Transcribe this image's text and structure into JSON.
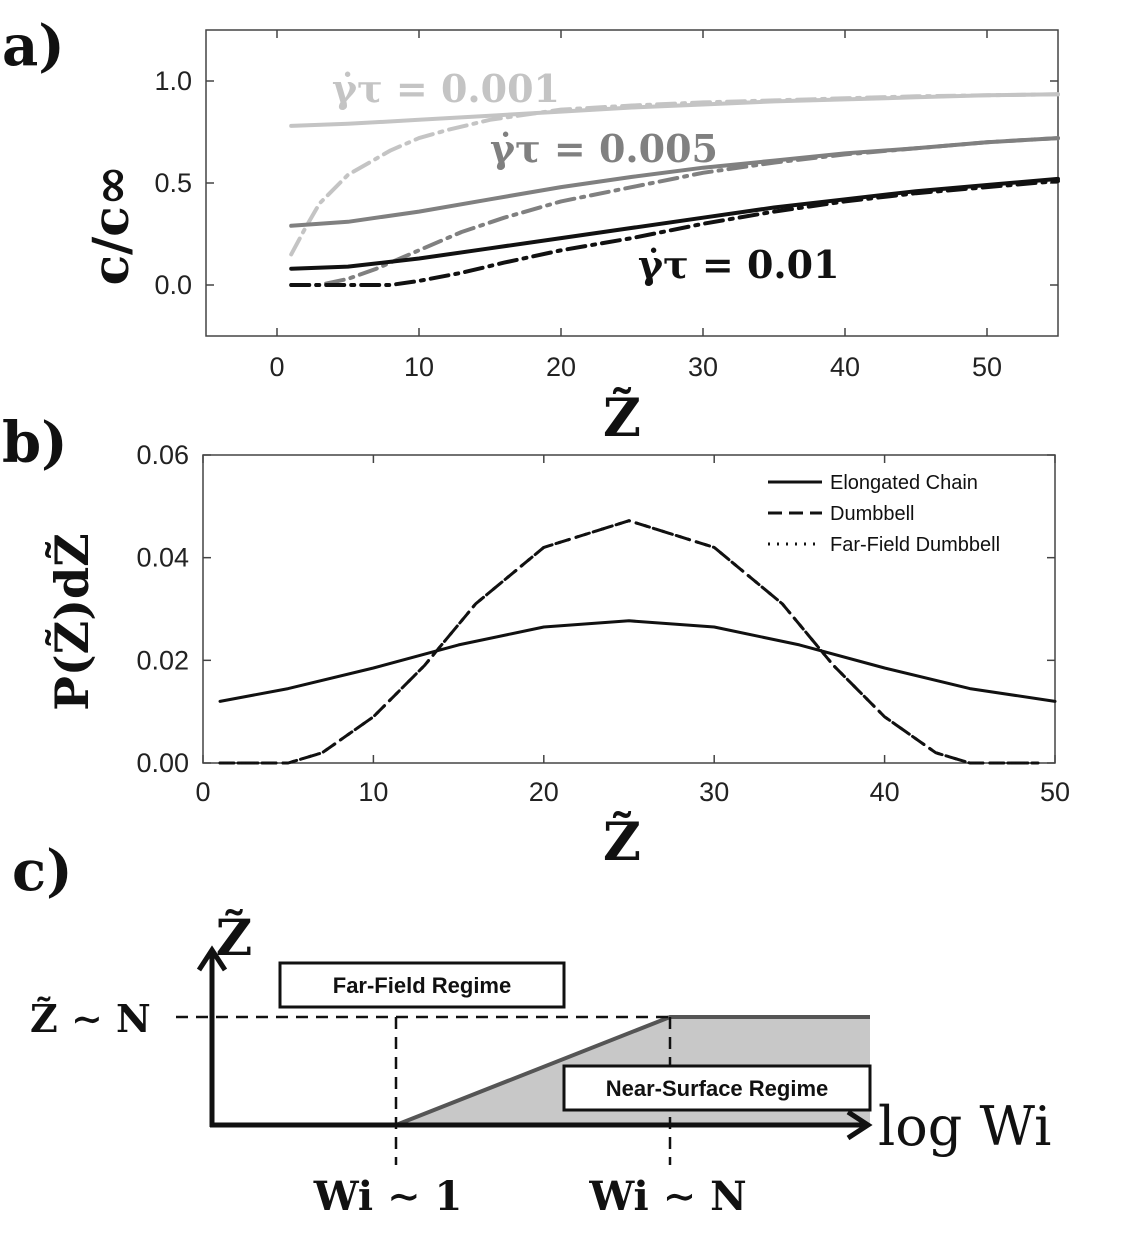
{
  "chart_data": [
    {
      "panel_label": "a)",
      "type": "line",
      "xlabel": "Z̃",
      "ylabel": "c/c∞",
      "xlim": [
        -5,
        55
      ],
      "ylim": [
        -0.25,
        1.25
      ],
      "xticks": [
        "0",
        "10",
        "20",
        "30",
        "40",
        "50"
      ],
      "yticks": [
        "0.0",
        "0.5",
        "1.0"
      ],
      "annotations": [
        "γ̇τ = 0.001",
        "γ̇τ = 0.005",
        "γ̇τ = 0.01"
      ],
      "series": [
        {
          "name": "γ̇τ = 0.001 (solid)",
          "color": "#c4c4c4",
          "style": "solid",
          "x": [
            1,
            5,
            10,
            15,
            20,
            25,
            30,
            35,
            40,
            45,
            50,
            55
          ],
          "y": [
            0.78,
            0.79,
            0.81,
            0.83,
            0.85,
            0.87,
            0.885,
            0.9,
            0.91,
            0.92,
            0.93,
            0.935
          ]
        },
        {
          "name": "γ̇τ = 0.001 (dashed)",
          "color": "#c4c4c4",
          "style": "dashdot",
          "x": [
            1,
            2,
            3,
            5,
            8,
            10,
            12,
            15,
            20,
            25,
            30,
            35,
            40,
            45,
            50,
            55
          ],
          "y": [
            0.15,
            0.28,
            0.4,
            0.54,
            0.66,
            0.72,
            0.76,
            0.81,
            0.86,
            0.88,
            0.895,
            0.905,
            0.915,
            0.925,
            0.93,
            0.935
          ]
        },
        {
          "name": "γ̇τ = 0.005 (solid)",
          "color": "#808080",
          "style": "solid",
          "x": [
            1,
            5,
            10,
            15,
            20,
            25,
            30,
            35,
            40,
            45,
            50,
            55
          ],
          "y": [
            0.29,
            0.31,
            0.36,
            0.42,
            0.48,
            0.53,
            0.575,
            0.61,
            0.645,
            0.67,
            0.7,
            0.72
          ]
        },
        {
          "name": "γ̇τ = 0.005 (dashed)",
          "color": "#808080",
          "style": "dashdot",
          "x": [
            1,
            3,
            5,
            7,
            10,
            13,
            16,
            20,
            25,
            30,
            35,
            40,
            45,
            50,
            55
          ],
          "y": [
            0.0,
            0.0,
            0.03,
            0.08,
            0.17,
            0.26,
            0.33,
            0.41,
            0.48,
            0.55,
            0.6,
            0.64,
            0.67,
            0.7,
            0.72
          ]
        },
        {
          "name": "γ̇τ = 0.01 (solid)",
          "color": "#111111",
          "style": "solid",
          "x": [
            1,
            5,
            10,
            15,
            20,
            25,
            30,
            35,
            40,
            45,
            50,
            55
          ],
          "y": [
            0.08,
            0.09,
            0.13,
            0.18,
            0.23,
            0.28,
            0.33,
            0.38,
            0.42,
            0.46,
            0.49,
            0.52
          ]
        },
        {
          "name": "γ̇τ = 0.01 (dashed)",
          "color": "#111111",
          "style": "dashdot",
          "x": [
            1,
            5,
            8,
            10,
            13,
            16,
            20,
            25,
            30,
            35,
            40,
            45,
            50,
            55
          ],
          "y": [
            0.0,
            0.0,
            0.0,
            0.02,
            0.06,
            0.11,
            0.17,
            0.23,
            0.3,
            0.36,
            0.41,
            0.45,
            0.48,
            0.51
          ]
        }
      ]
    },
    {
      "panel_label": "b)",
      "type": "line",
      "xlabel": "Z̃",
      "ylabel": "P(Z̃)dZ̃",
      "xlim": [
        0,
        50
      ],
      "ylim": [
        0,
        0.06
      ],
      "xticks": [
        "0",
        "10",
        "20",
        "30",
        "40",
        "50"
      ],
      "yticks": [
        "0.00",
        "0.02",
        "0.04",
        "0.06"
      ],
      "legend": [
        "Elongated Chain",
        "Dumbbell",
        "Far-Field Dumbbell"
      ],
      "legend_position": "top-right",
      "series": [
        {
          "name": "Elongated Chain",
          "style": "solid",
          "x": [
            1,
            5,
            10,
            15,
            20,
            25,
            30,
            35,
            40,
            45,
            50
          ],
          "y": [
            0.012,
            0.0145,
            0.0185,
            0.023,
            0.0265,
            0.0277,
            0.0265,
            0.023,
            0.0185,
            0.0145,
            0.012
          ]
        },
        {
          "name": "Dumbbell",
          "style": "dashed",
          "x": [
            1,
            3,
            5,
            7,
            10,
            13,
            16,
            20,
            25,
            30,
            34,
            37,
            40,
            43,
            45,
            47,
            49
          ],
          "y": [
            0.0,
            0.0,
            0.0,
            0.002,
            0.009,
            0.019,
            0.031,
            0.042,
            0.0472,
            0.042,
            0.031,
            0.019,
            0.009,
            0.002,
            0.0,
            0.0,
            0.0
          ]
        },
        {
          "name": "Far-Field Dumbbell",
          "style": "dotted",
          "x": [
            1,
            3,
            5,
            7,
            10,
            13,
            16,
            20,
            25,
            30,
            34,
            37,
            40,
            43,
            45,
            47,
            49
          ],
          "y": [
            0.0,
            0.0,
            0.0,
            0.002,
            0.009,
            0.019,
            0.031,
            0.042,
            0.0472,
            0.042,
            0.031,
            0.019,
            0.009,
            0.002,
            0.0,
            0.0,
            0.0
          ]
        }
      ]
    },
    {
      "panel_label": "c)",
      "type": "diagram",
      "yaxis_label": "Z̃",
      "xaxis_label": "log Wi",
      "level_label": "Z̃ ∼ N",
      "x_markers": [
        "Wi ∼ 1",
        "Wi ∼ N"
      ],
      "regions": [
        "Far-Field Regime",
        "Near-Surface Regime"
      ]
    }
  ]
}
